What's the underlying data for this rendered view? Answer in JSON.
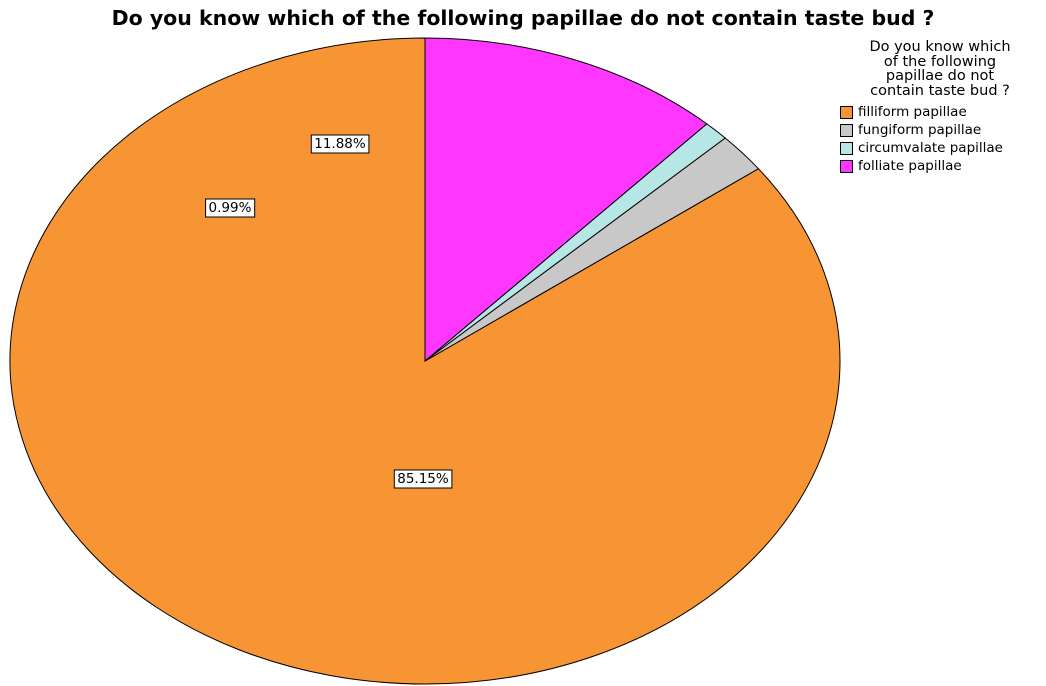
{
  "chart_data": {
    "type": "pie",
    "title": "Do you know which of the following papillae do not contain taste bud ?",
    "legend": {
      "title_lines": [
        "Do you know which",
        "of the following",
        "papillae do not",
        "contain taste bud ?"
      ],
      "placement": "top-right"
    },
    "categories": [
      "filliform papillae",
      "fungiform papillae",
      "circumvalate papillae",
      "folliate papillae"
    ],
    "values": [
      85.15,
      1.98,
      0.99,
      11.88
    ],
    "data_labels": [
      "85.15%",
      "",
      "0.99%",
      "11.88%"
    ],
    "colors": [
      "#F79433",
      "#C8C8C8",
      "#B7E6E6",
      "#FF36FF"
    ]
  }
}
